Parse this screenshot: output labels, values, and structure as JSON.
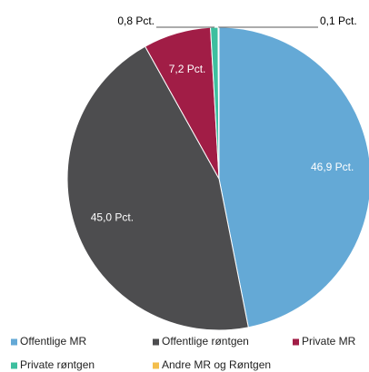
{
  "chart_data": {
    "type": "pie",
    "categories": [
      "Offentlige MR",
      "Offentlige røntgen",
      "Private MR",
      "Private røntgen",
      "Andre MR og Røntgen"
    ],
    "values": [
      46.9,
      45.0,
      7.2,
      0.8,
      0.1
    ],
    "value_labels": [
      "46,9 Pct.",
      "45,0 Pct.",
      "7,2 Pct.",
      "0,8 Pct.",
      "0,1 Pct."
    ],
    "colors": [
      "#64a9d6",
      "#4d4d4f",
      "#a11d46",
      "#3dbf9f",
      "#f3be4c"
    ],
    "legend": "bottom"
  }
}
